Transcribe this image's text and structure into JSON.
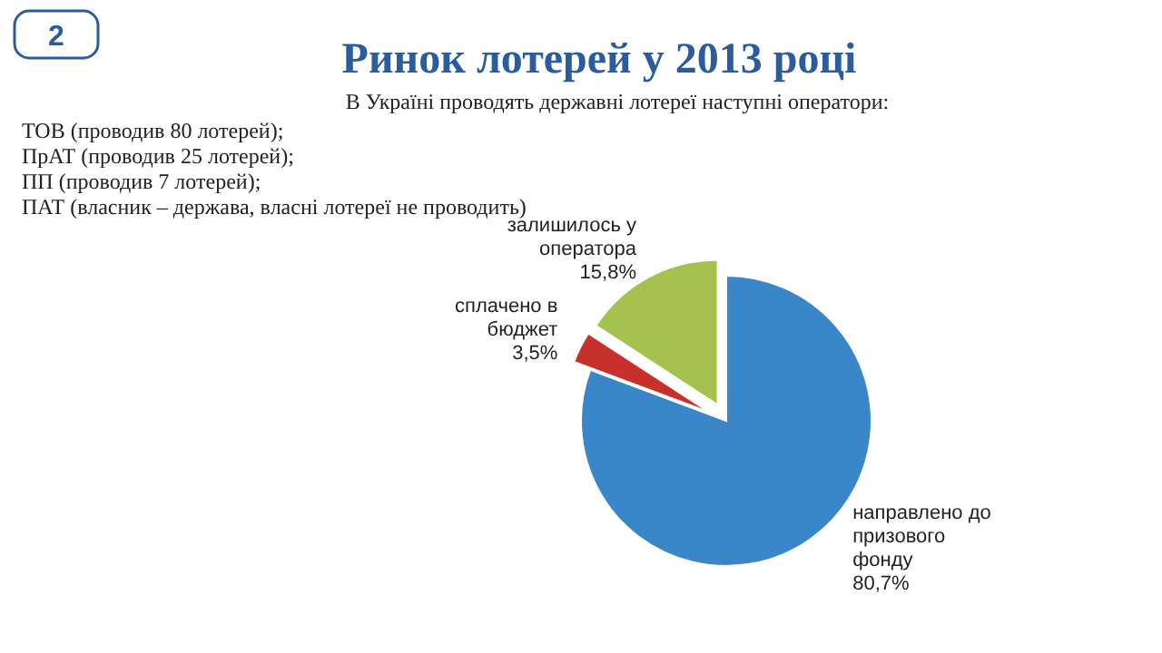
{
  "chart_data": {
    "type": "pie",
    "title": "Ринок лотерей у 2013 році",
    "subtitle": "В Україні проводять державні лотереї наступні оператори:",
    "categories": [
      "направлено до призового фонду",
      "сплачено в бюджет",
      "залишилось у оператора"
    ],
    "values": [
      80.7,
      3.5,
      15.8
    ],
    "value_labels": [
      "80,7%",
      "3,5%",
      "15,8%"
    ],
    "colors": [
      "#3a86c8",
      "#c8302c",
      "#a3c24e"
    ],
    "annotations": [
      "2",
      "ТОВ (проводив 80 лотерей);",
      "ПрАТ (проводив 25 лотерей);",
      "ПП (проводив 7 лотерей);",
      "ПАТ (власник – держава, власні лотереї не проводить)"
    ]
  }
}
